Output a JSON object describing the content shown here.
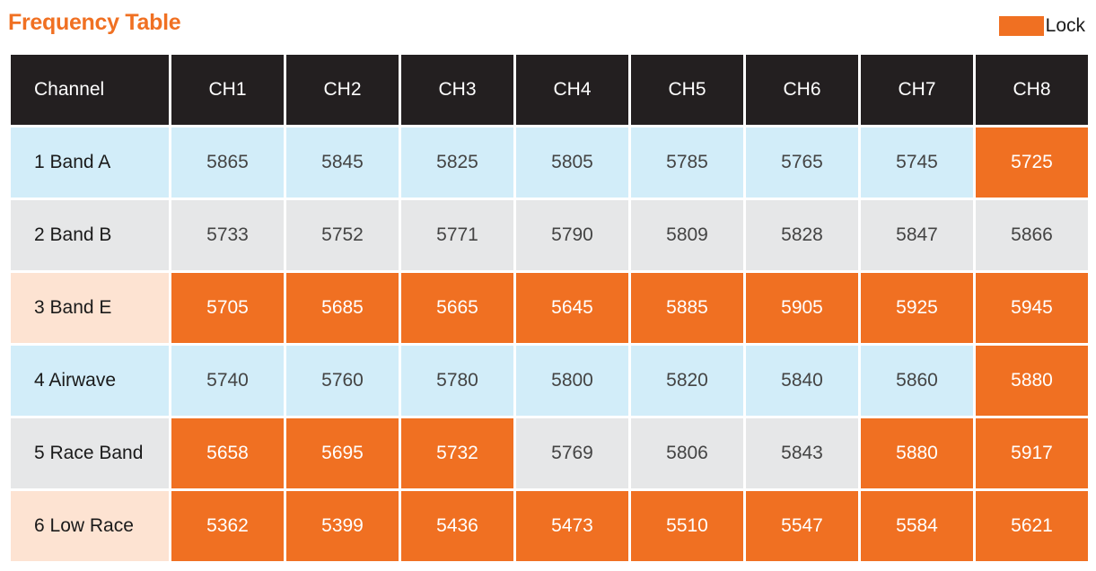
{
  "title": "Frequency Table",
  "legend": {
    "label": "Lock"
  },
  "colors": {
    "title": "#f07022",
    "lock": "#f07022",
    "header_bg": "#231f20",
    "row_blue": "#d2edf9",
    "row_gray": "#e6e7e8",
    "row_peach": "#fde3d2"
  },
  "table": {
    "header": [
      "Channel",
      "CH1",
      "CH2",
      "CH3",
      "CH4",
      "CH5",
      "CH6",
      "CH7",
      "CH8"
    ],
    "rows": [
      {
        "label": "1 Band A",
        "tint": "row_blue",
        "values": [
          "5865",
          "5845",
          "5825",
          "5805",
          "5785",
          "5765",
          "5745",
          "5725"
        ],
        "locked": [
          false,
          false,
          false,
          false,
          false,
          false,
          false,
          true
        ]
      },
      {
        "label": "2 Band B",
        "tint": "row_gray",
        "values": [
          "5733",
          "5752",
          "5771",
          "5790",
          "5809",
          "5828",
          "5847",
          "5866"
        ],
        "locked": [
          false,
          false,
          false,
          false,
          false,
          false,
          false,
          false
        ]
      },
      {
        "label": "3 Band E",
        "tint": "row_peach",
        "values": [
          "5705",
          "5685",
          "5665",
          "5645",
          "5885",
          "5905",
          "5925",
          "5945"
        ],
        "locked": [
          true,
          true,
          true,
          true,
          true,
          true,
          true,
          true
        ]
      },
      {
        "label": "4 Airwave",
        "tint": "row_blue",
        "values": [
          "5740",
          "5760",
          "5780",
          "5800",
          "5820",
          "5840",
          "5860",
          "5880"
        ],
        "locked": [
          false,
          false,
          false,
          false,
          false,
          false,
          false,
          true
        ]
      },
      {
        "label": "5 Race Band",
        "tint": "row_gray",
        "values": [
          "5658",
          "5695",
          "5732",
          "5769",
          "5806",
          "5843",
          "5880",
          "5917"
        ],
        "locked": [
          true,
          true,
          true,
          false,
          false,
          false,
          true,
          true
        ]
      },
      {
        "label": "6 Low Race",
        "tint": "row_peach",
        "values": [
          "5362",
          "5399",
          "5436",
          "5473",
          "5510",
          "5547",
          "5584",
          "5621"
        ],
        "locked": [
          true,
          true,
          true,
          true,
          true,
          true,
          true,
          true
        ]
      }
    ]
  }
}
